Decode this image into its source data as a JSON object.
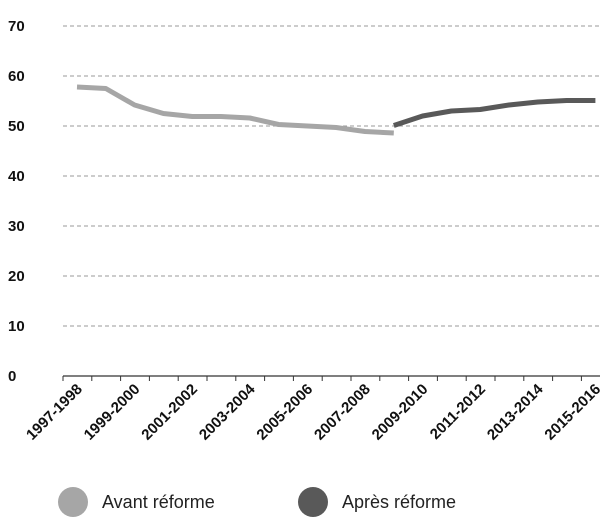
{
  "chart_data": {
    "type": "line",
    "title": "",
    "xlabel": "",
    "ylabel": "",
    "ylim": [
      0,
      70
    ],
    "yticks": [
      0,
      10,
      20,
      30,
      40,
      50,
      60,
      70
    ],
    "grid": true,
    "legend_position": "bottom",
    "xtick_labels": [
      "1997-1998",
      "1999-2000",
      "2001-2002",
      "2003-2004",
      "2005-2006",
      "2007-2008",
      "2009-2010",
      "2011-2012",
      "2013-2014",
      "2015-2016"
    ],
    "series": [
      {
        "name": "Avant réforme",
        "color": "#a6a6a6",
        "x": [
          "1997-1998",
          "1998-1999",
          "1999-2000",
          "2000-2001",
          "2001-2002",
          "2002-2003",
          "2003-2004",
          "2004-2005",
          "2005-2006",
          "2006-2007",
          "2007-2008",
          "2008-2009"
        ],
        "values": [
          57.8,
          57.5,
          54.2,
          52.5,
          51.9,
          51.9,
          51.6,
          50.3,
          50.0,
          49.7,
          48.9,
          48.6
        ]
      },
      {
        "name": "Après réforme",
        "color": "#595959",
        "x": [
          "2008-2009",
          "2009-2010",
          "2010-2011",
          "2011-2012",
          "2012-2013",
          "2013-2014",
          "2014-2015",
          "2015-2016"
        ],
        "values": [
          50.1,
          52.0,
          53.0,
          53.3,
          54.2,
          54.8,
          55.1,
          55.1
        ]
      }
    ]
  }
}
